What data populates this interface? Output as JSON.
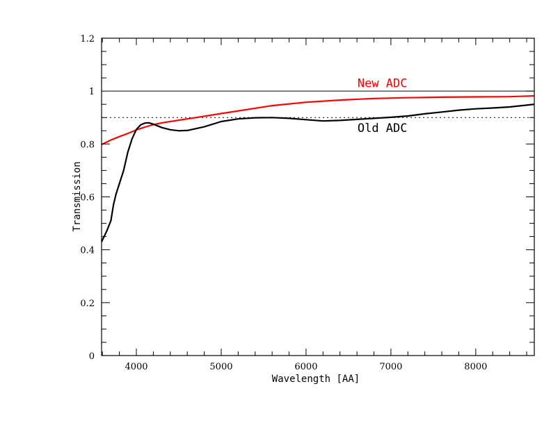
{
  "chart_data": {
    "type": "line",
    "title": "",
    "xlabel": "Wavelength [AA]",
    "ylabel": "Transmission",
    "xlim": [
      3590,
      8690
    ],
    "ylim": [
      0,
      1.2
    ],
    "xticks": [
      4000,
      5000,
      6000,
      7000,
      8000
    ],
    "xtick_labels": [
      "4000",
      "5000",
      "6000",
      "7000",
      "8000"
    ],
    "yticks": [
      0,
      0.2,
      0.4,
      0.6,
      0.8,
      1,
      1.2
    ],
    "ytick_labels": [
      "0",
      "0.2",
      "0.4",
      "0.6",
      "0.8",
      "1",
      "1.2"
    ],
    "x_minor_step": 200,
    "y_minor_step": 0.05,
    "grid": false,
    "reference_lines": [
      {
        "name": "unity",
        "y": 1.0,
        "style": "solid",
        "color": "#000000"
      },
      {
        "name": "ninety-percent",
        "y": 0.9,
        "style": "dotted",
        "color": "#000000"
      }
    ],
    "series": [
      {
        "name": "New ADC",
        "color": "#ff0000",
        "x": [
          3590,
          3700,
          3800,
          3900,
          4000,
          4100,
          4200,
          4300,
          4500,
          4700,
          5000,
          5300,
          5600,
          6000,
          6400,
          6800,
          7200,
          7600,
          8000,
          8400,
          8690
        ],
        "y": [
          0.798,
          0.815,
          0.828,
          0.84,
          0.853,
          0.864,
          0.873,
          0.88,
          0.89,
          0.9,
          0.915,
          0.93,
          0.945,
          0.958,
          0.966,
          0.972,
          0.975,
          0.977,
          0.978,
          0.979,
          0.982
        ]
      },
      {
        "name": "Old ADC",
        "color": "#000000",
        "x": [
          3590,
          3650,
          3700,
          3730,
          3760,
          3800,
          3850,
          3900,
          3950,
          4000,
          4050,
          4100,
          4150,
          4200,
          4300,
          4400,
          4500,
          4600,
          4800,
          5000,
          5200,
          5400,
          5600,
          5800,
          6000,
          6200,
          6400,
          6600,
          6800,
          7000,
          7200,
          7400,
          7600,
          7800,
          8000,
          8200,
          8400,
          8690
        ],
        "y": [
          0.43,
          0.47,
          0.51,
          0.57,
          0.61,
          0.65,
          0.7,
          0.77,
          0.82,
          0.855,
          0.872,
          0.879,
          0.88,
          0.875,
          0.862,
          0.854,
          0.85,
          0.851,
          0.865,
          0.885,
          0.895,
          0.899,
          0.9,
          0.897,
          0.892,
          0.887,
          0.889,
          0.893,
          0.897,
          0.901,
          0.906,
          0.914,
          0.921,
          0.928,
          0.933,
          0.936,
          0.94,
          0.95
        ]
      }
    ],
    "annotations": [
      {
        "text": "New ADC",
        "x": 6900,
        "y": 1.015,
        "color": "#ff0000"
      },
      {
        "text": "Old ADC",
        "x": 6900,
        "y": 0.845,
        "color": "#000000"
      }
    ]
  }
}
